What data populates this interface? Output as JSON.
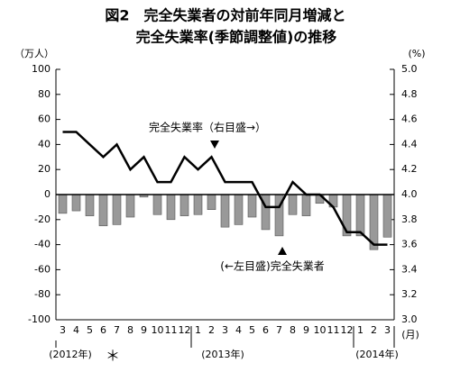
{
  "chart_data": {
    "type": "bar_line",
    "title": "図2　完全失業者の対前年同月増減と",
    "subtitle": "完全失業率(季節調整値)の推移",
    "y_label": "（万人）",
    "y2_label": "(%)",
    "x_unit": "(月)",
    "year_labels": [
      "(2012年)",
      "(2013年)",
      "(2014年)"
    ],
    "asterisk": "＊",
    "categories": [
      "3",
      "4",
      "5",
      "6",
      "7",
      "8",
      "9",
      "10",
      "11",
      "12",
      "1",
      "2",
      "3",
      "4",
      "5",
      "6",
      "7",
      "8",
      "9",
      "10",
      "11",
      "12",
      "1",
      "2",
      "3"
    ],
    "series": [
      {
        "name": "(←左目盛)完全失業者",
        "color": "#999999",
        "axis": "y",
        "values": [
          -15,
          -13,
          -17,
          -25,
          -24,
          -18,
          -2,
          -16,
          -20,
          -17,
          -16,
          -12,
          -26,
          -24,
          -18,
          -28,
          -33,
          -16,
          -17,
          -7,
          -10,
          -33,
          -33,
          -44,
          -34
        ]
      },
      {
        "name": "完全失業率（右目盛→）",
        "color": "#000000",
        "axis": "y2",
        "values": [
          4.5,
          4.5,
          4.4,
          4.3,
          4.4,
          4.2,
          4.3,
          4.1,
          4.1,
          4.3,
          4.2,
          4.3,
          4.1,
          4.1,
          4.1,
          3.9,
          3.9,
          4.1,
          4.0,
          4.0,
          3.9,
          3.7,
          3.7,
          3.6,
          3.6
        ]
      }
    ],
    "ylim": [
      -100,
      100
    ],
    "yticks": [
      -100,
      -80,
      -60,
      -40,
      -20,
      0,
      20,
      40,
      60,
      80,
      100
    ],
    "y2lim": [
      3,
      5
    ],
    "y2ticks": [
      {
        "value": 3,
        "label": "3.0"
      },
      3.2,
      3.4,
      3.6,
      3.8,
      {
        "value": 4,
        "label": "4.0"
      },
      4.2,
      4.4,
      4.6,
      4.8,
      {
        "value": 5,
        "label": "5.0"
      }
    ]
  }
}
